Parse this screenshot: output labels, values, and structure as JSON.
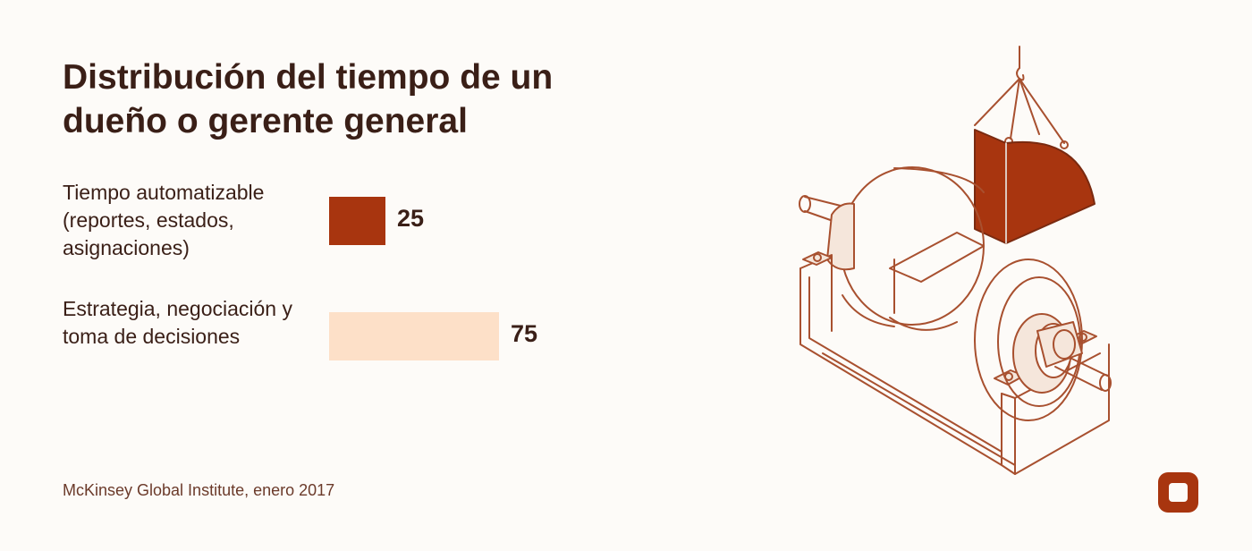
{
  "title": "Distribución del tiempo de un dueño o gerente general",
  "source": "McKinsey Global Institute, enero 2017",
  "colors": {
    "automatable": "#a8350f",
    "strategy": "#fde0c8",
    "text": "#3a1f17",
    "line": "#a8502f"
  },
  "chart_data": {
    "type": "bar",
    "orientation": "horizontal",
    "categories": [
      "Tiempo automatizable (reportes, estados, asignaciones)",
      "Estrategia, negociación y toma de decisiones"
    ],
    "values": [
      25,
      75
    ],
    "xlim": [
      0,
      75
    ],
    "grid": false,
    "legend": "none"
  },
  "labels": {
    "automatable": "Tiempo automatizable (reportes, estados, asignaciones)",
    "strategy": "Estrategia, negociación y toma de decisiones",
    "automatable_value": "25",
    "strategy_value": "75"
  },
  "icons": {
    "illustration": "winding-machine-illustration",
    "logo": "brand-logo-icon"
  }
}
